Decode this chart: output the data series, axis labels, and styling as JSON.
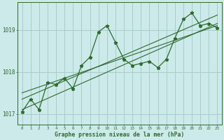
{
  "title": "",
  "xlabel": "Graphe pression niveau de la mer (hPa)",
  "background_color": "#cceaea",
  "grid_color": "#aacccc",
  "line_color": "#2d6a2d",
  "hours": [
    0,
    1,
    2,
    3,
    4,
    5,
    6,
    7,
    8,
    9,
    10,
    11,
    12,
    13,
    14,
    15,
    16,
    17,
    18,
    19,
    20,
    21,
    22,
    23
  ],
  "pressure": [
    1017.05,
    1017.35,
    1017.1,
    1017.75,
    1017.7,
    1017.85,
    1017.6,
    1018.15,
    1018.35,
    1018.95,
    1019.1,
    1018.7,
    1018.3,
    1018.15,
    1018.2,
    1018.25,
    1018.1,
    1018.3,
    1018.8,
    1019.25,
    1019.4,
    1019.1,
    1019.15,
    1019.05
  ],
  "ylim": [
    1016.75,
    1019.65
  ],
  "yticks": [
    1017,
    1018,
    1019
  ],
  "trend_lines": [
    [
      1017.1,
      1019.15
    ],
    [
      1017.5,
      1019.1
    ],
    [
      1017.35,
      1019.35
    ]
  ]
}
